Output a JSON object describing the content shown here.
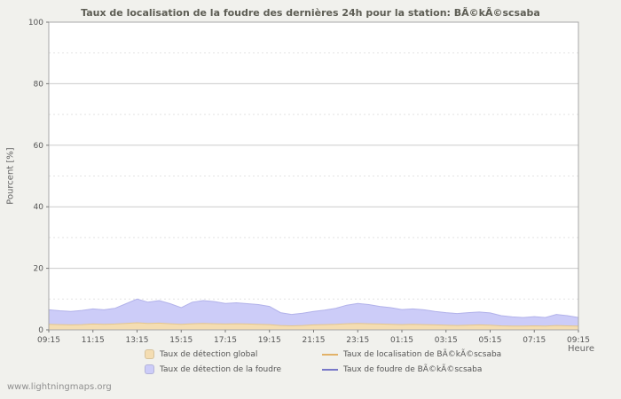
{
  "page": {
    "footer_link": "www.lightningmaps.org"
  },
  "chart_data": {
    "type": "area",
    "title": "Taux de localisation de la foudre des dernières 24h pour la station: BÃ©kÃ©scsaba",
    "xlabel": "Heure",
    "ylabel": "Pourcent  [%]",
    "ylim": [
      0,
      100
    ],
    "y_ticks": [
      0,
      20,
      40,
      60,
      80,
      100
    ],
    "x_ticks": [
      "09:15",
      "11:15",
      "13:15",
      "15:15",
      "17:15",
      "19:15",
      "21:15",
      "23:15",
      "01:15",
      "03:15",
      "05:15",
      "07:15",
      "09:15"
    ],
    "grid": "horizontal-only",
    "legend_position": "bottom",
    "plot_border_color": "#a8a8a8",
    "grid_major_color": "#cccccc",
    "grid_minor_color": "#e3e3e3",
    "series": [
      {
        "name": "Taux de détection de la foudre",
        "type": "area",
        "color": "#ccccf8",
        "stroke": "#b2b2ea",
        "values": [
          6.5,
          6.2,
          6.0,
          6.3,
          6.8,
          6.5,
          7.0,
          8.5,
          10.0,
          9.0,
          9.5,
          8.5,
          7.2,
          9.0,
          9.5,
          9.2,
          8.6,
          8.8,
          8.5,
          8.2,
          7.6,
          5.6,
          5.0,
          5.4,
          6.0,
          6.4,
          7.0,
          8.0,
          8.6,
          8.2,
          7.6,
          7.2,
          6.6,
          6.8,
          6.5,
          6.0,
          5.6,
          5.3,
          5.6,
          5.8,
          5.5,
          4.6,
          4.2,
          4.0,
          4.3,
          4.0,
          5.0,
          4.6,
          4.0
        ]
      },
      {
        "name": "Taux de détection global",
        "type": "area",
        "color": "#f4ddb2",
        "stroke": "#e4c68c",
        "values": [
          1.8,
          1.7,
          1.6,
          1.7,
          1.9,
          1.8,
          1.9,
          2.1,
          2.3,
          2.1,
          2.2,
          2.0,
          1.8,
          2.0,
          2.1,
          2.0,
          1.9,
          2.0,
          1.9,
          1.8,
          1.7,
          1.4,
          1.3,
          1.4,
          1.6,
          1.7,
          1.8,
          2.0,
          2.1,
          2.0,
          1.9,
          1.8,
          1.7,
          1.8,
          1.7,
          1.6,
          1.5,
          1.4,
          1.5,
          1.6,
          1.5,
          1.3,
          1.2,
          1.2,
          1.3,
          1.2,
          1.4,
          1.3,
          1.2
        ]
      },
      {
        "name": "Taux de localisation de BÃ©kÃ©scsaba",
        "type": "line",
        "color": "#e2b268",
        "values": [
          0,
          0,
          0,
          0,
          0,
          0,
          0,
          0,
          0,
          0,
          0,
          0,
          0,
          0,
          0,
          0,
          0,
          0,
          0,
          0,
          0,
          0,
          0,
          0,
          0,
          0,
          0,
          0,
          0,
          0,
          0,
          0,
          0,
          0,
          0,
          0,
          0,
          0,
          0,
          0,
          0,
          0,
          0,
          0,
          0,
          0,
          0,
          0,
          0
        ]
      },
      {
        "name": "Taux de foudre de BÃ©kÃ©scsaba",
        "type": "line",
        "color": "#7878c8",
        "values": [
          0,
          0,
          0,
          0,
          0,
          0,
          0,
          0,
          0,
          0,
          0,
          0,
          0,
          0,
          0,
          0,
          0,
          0,
          0,
          0,
          0,
          0,
          0,
          0,
          0,
          0,
          0,
          0,
          0,
          0,
          0,
          0,
          0,
          0,
          0,
          0,
          0,
          0,
          0,
          0,
          0,
          0,
          0,
          0,
          0,
          0,
          0,
          0,
          0
        ]
      }
    ],
    "legend": [
      {
        "label": "Taux de détection global",
        "swatch": "area",
        "color": "#f4ddb2"
      },
      {
        "label": "Taux de localisation de BÃ©kÃ©scsaba",
        "swatch": "line",
        "color": "#e2b268"
      },
      {
        "label": "Taux de détection de la foudre",
        "swatch": "area",
        "color": "#ccccf8"
      },
      {
        "label": "Taux de foudre de BÃ©kÃ©scsaba",
        "swatch": "line",
        "color": "#7878c8"
      }
    ]
  }
}
